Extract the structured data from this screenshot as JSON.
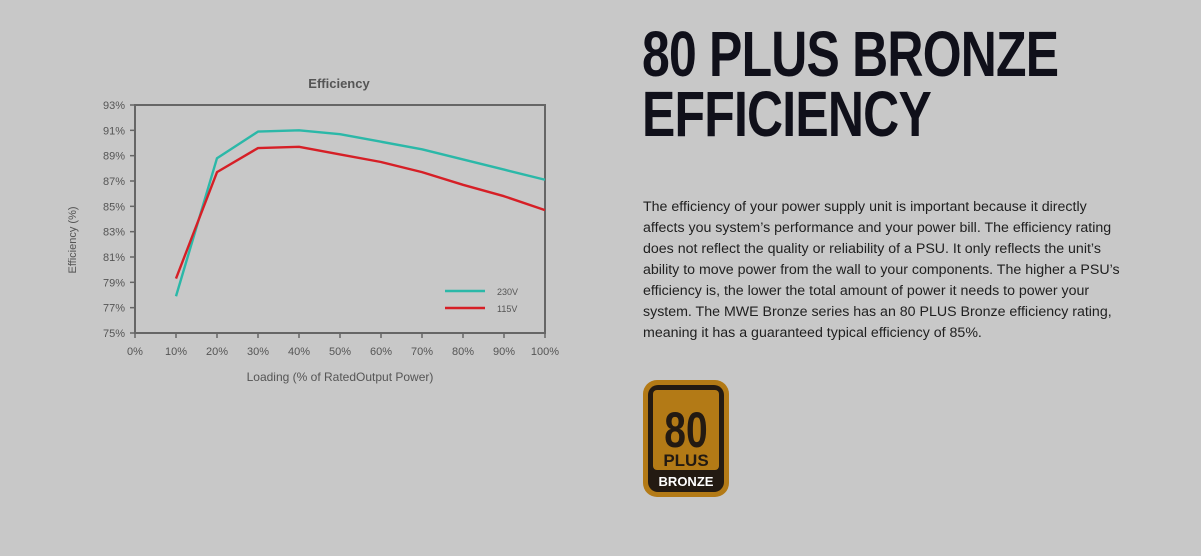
{
  "headline": {
    "line1": "80 PLUS BRONZE",
    "line2": "EFFICIENCY"
  },
  "description": "The efficiency of your power supply unit is important because it directly affects you system’s performance and your power bill. The efficiency rating does not reflect the quality or reliability of a PSU. It only reflects the unit’s ability to move power from the wall to your components. The higher a PSU’s efficiency is, the lower the total amount of power it needs to power your system. The MWE Bronze series has an 80 PLUS Bronze efficiency rating, meaning it has a guaranteed typical efficiency of 85%.",
  "badge": {
    "number": "80",
    "word": "PLUS",
    "tier": "BRONZE",
    "colors": {
      "gold": "#b37a16",
      "dark": "#231a12"
    }
  },
  "chart_data": {
    "type": "line",
    "title": "Efficiency",
    "xlabel": "Loading (% of RatedOutput Power)",
    "ylabel": "Efficiency (%)",
    "x": [
      10,
      20,
      30,
      40,
      50,
      60,
      70,
      80,
      90,
      100
    ],
    "x_tick_labels": [
      "0%",
      "10%",
      "20%",
      "30%",
      "40%",
      "50%",
      "60%",
      "70%",
      "80%",
      "90%",
      "100%"
    ],
    "y_tick_labels": [
      "93%",
      "91%",
      "89%",
      "87%",
      "85%",
      "83%",
      "81%",
      "79%",
      "77%",
      "75%"
    ],
    "xlim": [
      0,
      100
    ],
    "ylim": [
      75,
      93
    ],
    "legend_position": "bottom-right",
    "grid": false,
    "series": [
      {
        "name": "230V",
        "color": "#2bb8a8",
        "values": [
          77.9,
          88.8,
          90.9,
          91.0,
          90.7,
          90.1,
          89.5,
          88.7,
          87.9,
          87.1
        ]
      },
      {
        "name": "115V",
        "color": "#d61f26",
        "values": [
          79.3,
          87.7,
          89.6,
          89.7,
          89.1,
          88.5,
          87.7,
          86.7,
          85.8,
          84.7
        ]
      }
    ]
  }
}
